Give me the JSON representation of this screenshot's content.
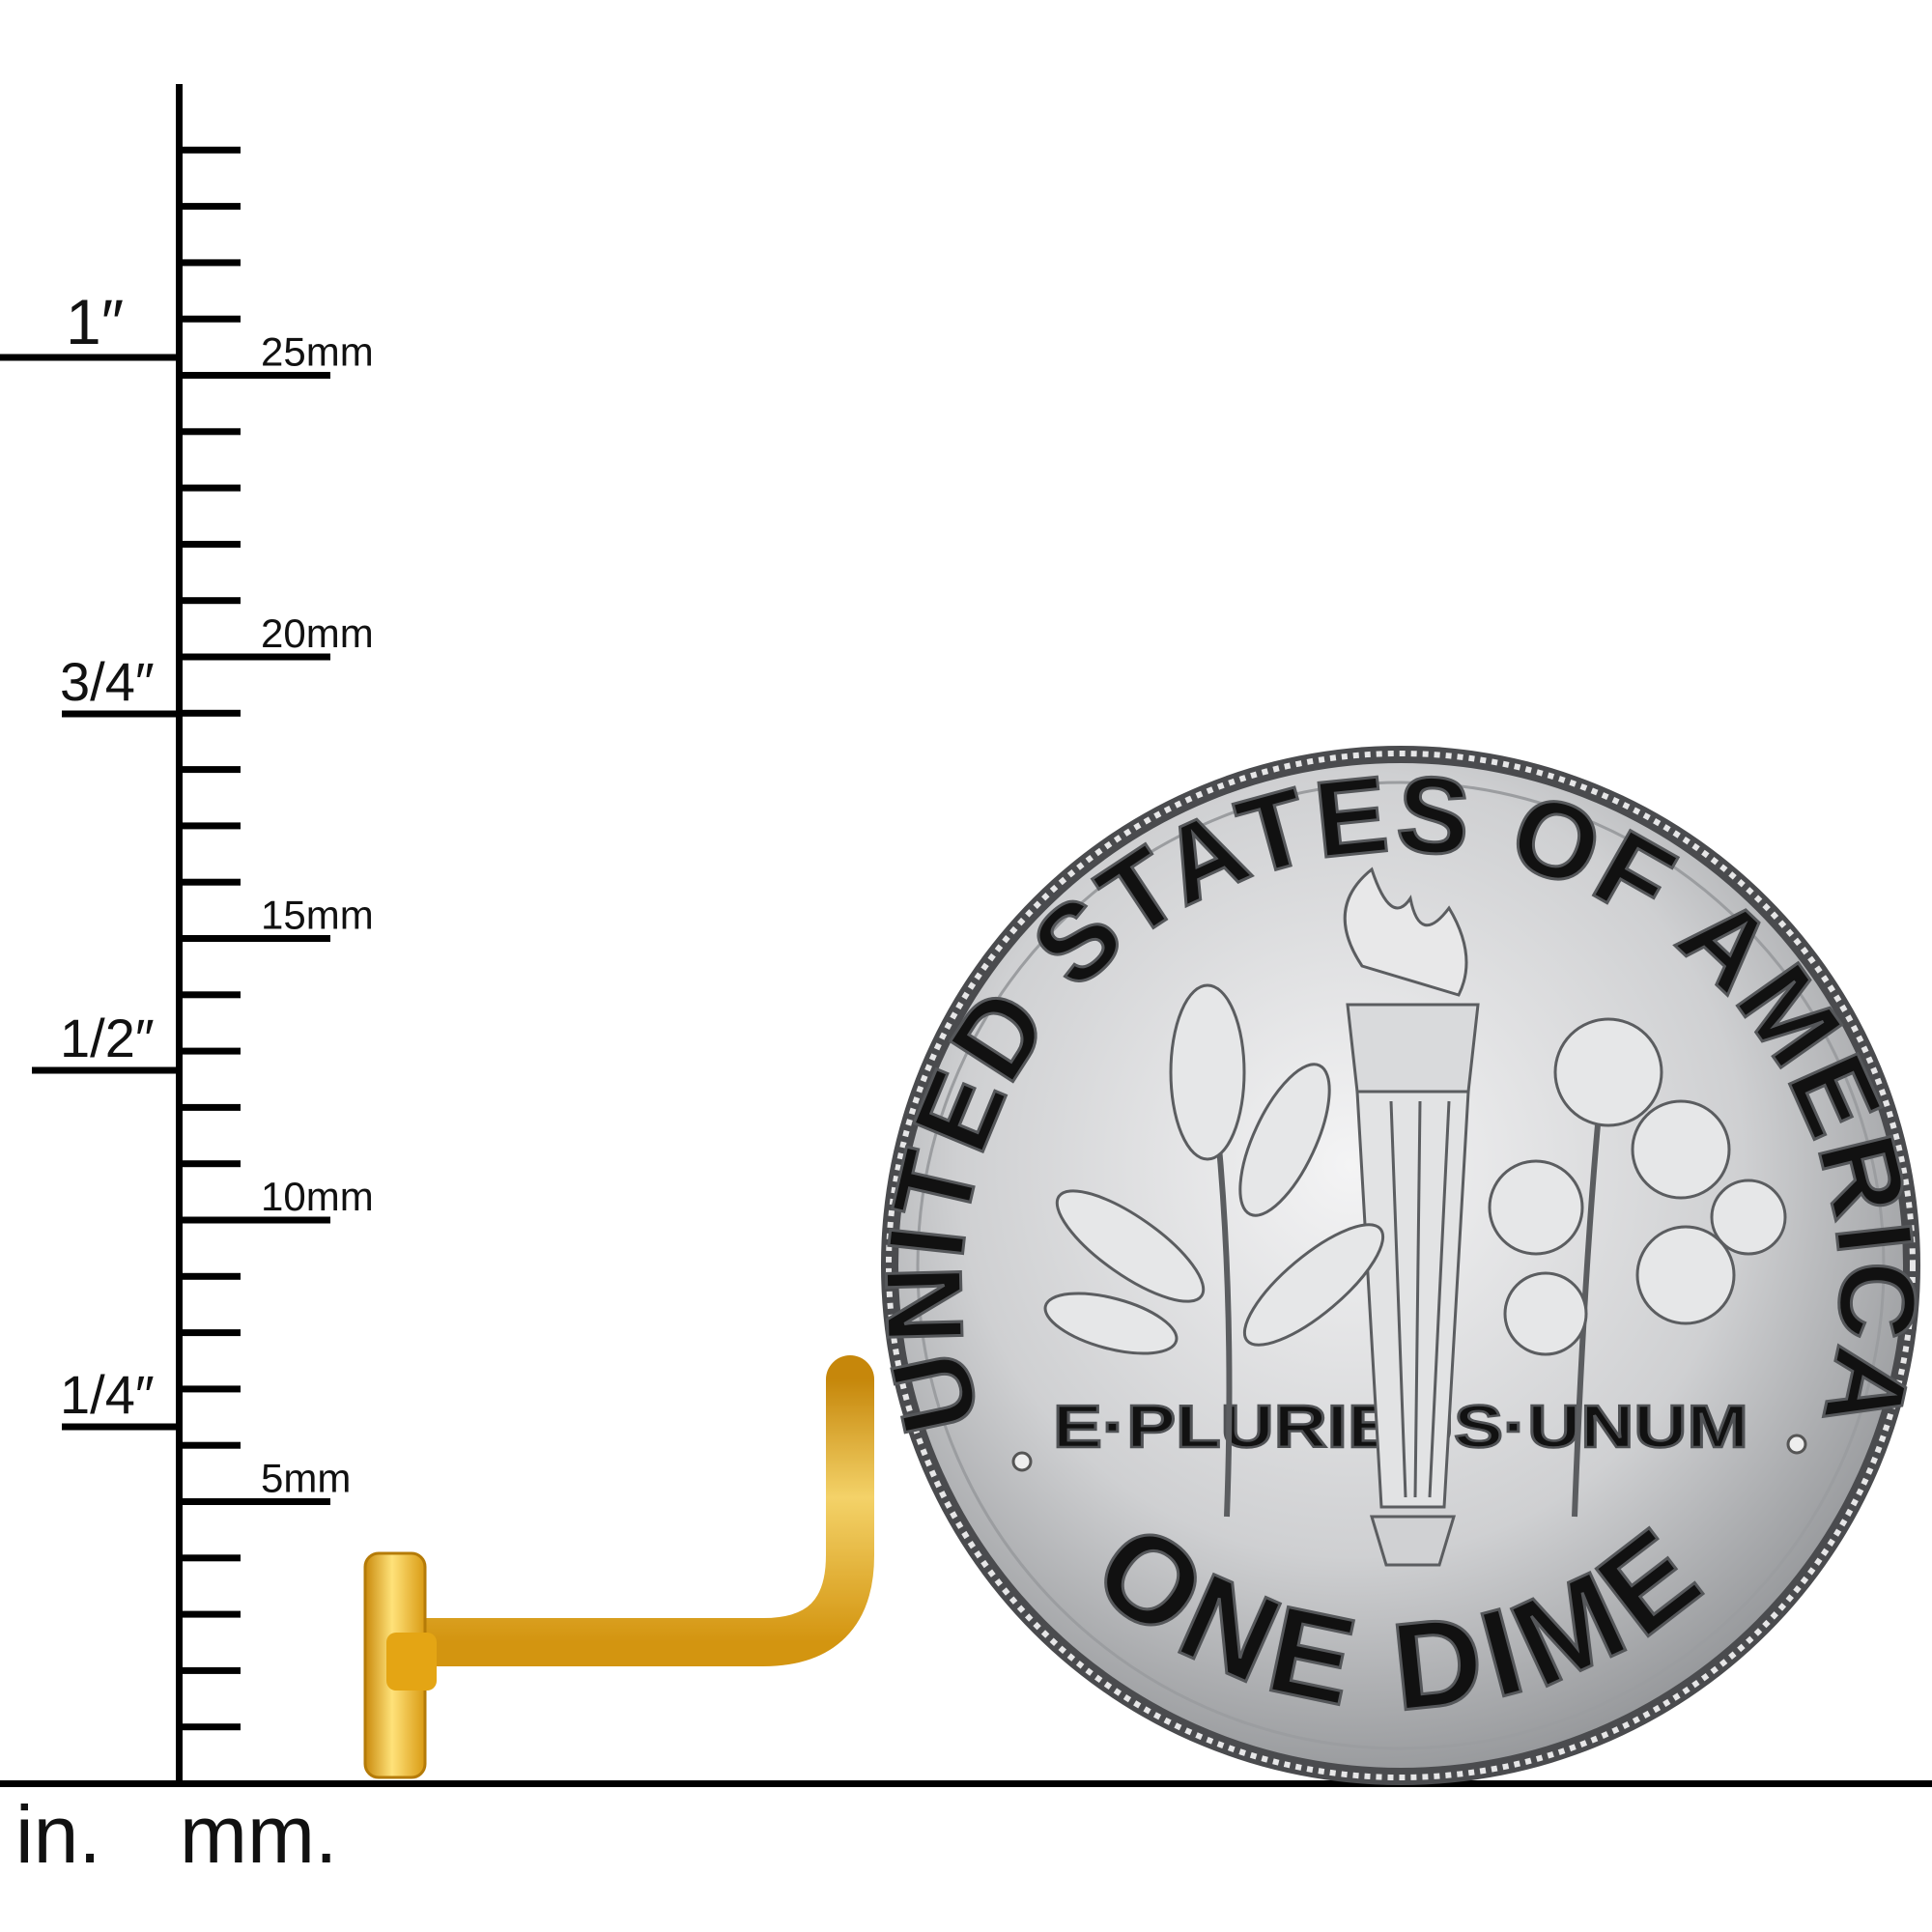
{
  "ruler": {
    "tick_interval_mm": 1,
    "tick_count": 29,
    "mm_labels": [
      {
        "value": 5,
        "text": "5mm"
      },
      {
        "value": 10,
        "text": "10mm"
      },
      {
        "value": 15,
        "text": "15mm"
      },
      {
        "value": 20,
        "text": "20mm"
      },
      {
        "value": 25,
        "text": "25mm"
      }
    ],
    "inch_labels": [
      {
        "value": 0.25,
        "text": "1/4″"
      },
      {
        "value": 0.5,
        "text": "1/2″"
      },
      {
        "value": 0.75,
        "text": "3/4″"
      },
      {
        "value": 1,
        "text": "1″"
      }
    ],
    "unit_in": "in.",
    "unit_mm": "mm."
  },
  "coin": {
    "top_legend": "UNITED STATES OF AMERICA",
    "motto": "E·PLURIBUS·UNUM",
    "denomination": "ONE DIME",
    "color": "#c9cacc"
  },
  "product": {
    "type": "L-shaped nose stud",
    "color": "#f2b51f"
  }
}
